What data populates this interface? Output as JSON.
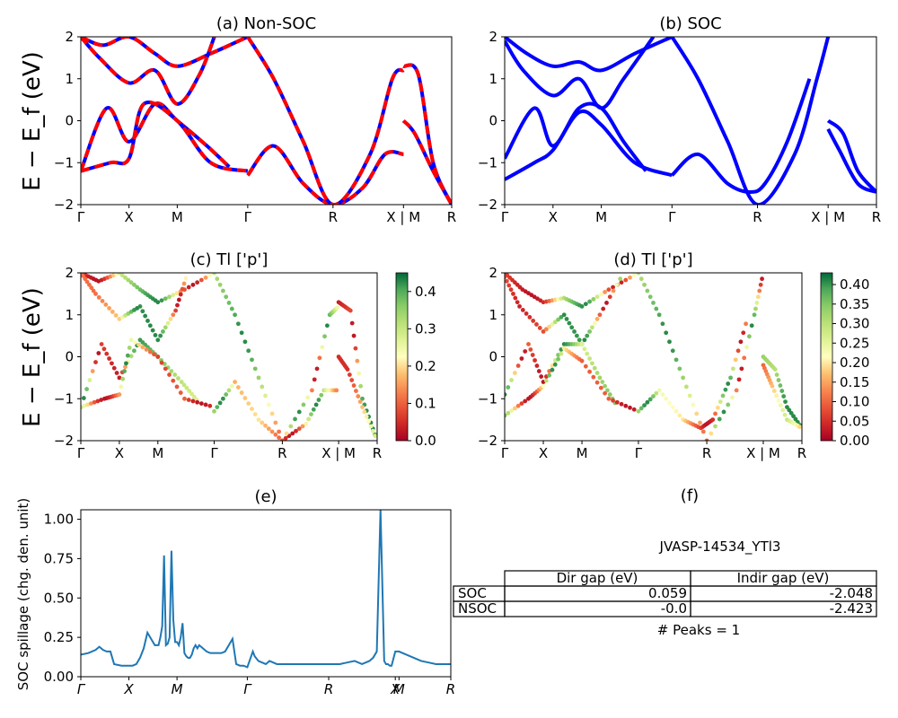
{
  "figure": {
    "ylabel": "E − E_f (eV)",
    "ylabel_e": "SOC spillage (chg. den. unit)"
  },
  "chart_data": [
    {
      "id": "a",
      "type": "line",
      "title": "(a) Non-SOC",
      "xticks": [
        "Γ",
        "X",
        "M",
        "Γ",
        "R",
        "X | M",
        "R"
      ],
      "xtick_pos": [
        0,
        0.13,
        0.26,
        0.45,
        0.68,
        0.87,
        1.0
      ],
      "ylim": [
        -2,
        2
      ],
      "yticks": [
        "2",
        "1",
        "0",
        "−1",
        "−2"
      ],
      "colors": {
        "up": "#0000ff",
        "down": "#ff0000"
      },
      "series": [
        {
          "x": [
            0,
            0.06,
            0.13,
            0.2,
            0.26,
            0.35,
            0.45
          ],
          "y": [
            2,
            1.8,
            2,
            1.6,
            1.3,
            1.6,
            2
          ]
        },
        {
          "x": [
            0,
            0.05,
            0.13,
            0.2,
            0.26,
            0.32,
            0.36
          ],
          "y": [
            2,
            1.5,
            0.9,
            1.2,
            0.4,
            1.1,
            2
          ]
        },
        {
          "x": [
            0,
            0.07,
            0.13,
            0.2,
            0.26,
            0.34,
            0.4
          ],
          "y": [
            -1.2,
            0.3,
            -0.5,
            0.4,
            0,
            -0.6,
            -1.1
          ]
        },
        {
          "x": [
            0,
            0.08,
            0.13,
            0.17,
            0.26,
            0.35,
            0.45
          ],
          "y": [
            -1.2,
            -1.0,
            -0.9,
            0.4,
            0,
            -1,
            -1.2
          ]
        },
        {
          "x": [
            0.45,
            0.52,
            0.6,
            0.68,
            0.76,
            0.82,
            0.87
          ],
          "y": [
            -1.3,
            -0.6,
            -1.5,
            -2,
            -1.6,
            -0.8,
            -0.8
          ]
        },
        {
          "x": [
            0.45,
            0.52,
            0.6,
            0.68,
            0.78,
            0.84,
            0.87
          ],
          "y": [
            2,
            1,
            -0.5,
            -2,
            -0.8,
            1.0,
            1.2
          ]
        },
        {
          "x": [
            0.87,
            0.91,
            0.95,
            1.0
          ],
          "y": [
            1.3,
            1.1,
            -1,
            -2
          ]
        },
        {
          "x": [
            0.87,
            0.9,
            0.95,
            1.0
          ],
          "y": [
            0,
            -0.3,
            -1.2,
            -2
          ]
        }
      ]
    },
    {
      "id": "b",
      "type": "line",
      "title": "(b) SOC",
      "xticks": [
        "Γ",
        "X",
        "M",
        "Γ",
        "R",
        "X | M",
        "R"
      ],
      "xtick_pos": [
        0,
        0.13,
        0.26,
        0.45,
        0.68,
        0.87,
        1.0
      ],
      "ylim": [
        -2,
        2
      ],
      "yticks": [
        "2",
        "1",
        "0",
        "−1",
        "−2"
      ],
      "colors": {
        "line": "#0000ff"
      },
      "series": [
        {
          "x": [
            0,
            0.06,
            0.13,
            0.2,
            0.26,
            0.35,
            0.45
          ],
          "y": [
            2,
            1.6,
            1.3,
            1.4,
            1.2,
            1.6,
            2
          ]
        },
        {
          "x": [
            0,
            0.05,
            0.13,
            0.2,
            0.26,
            0.32,
            0.4
          ],
          "y": [
            1.9,
            1.2,
            0.6,
            1.0,
            0.3,
            1.0,
            2
          ]
        },
        {
          "x": [
            0,
            0.08,
            0.13,
            0.2,
            0.26,
            0.32,
            0.38
          ],
          "y": [
            -0.9,
            0.3,
            -0.6,
            0.3,
            0.3,
            -0.5,
            -1.2
          ]
        },
        {
          "x": [
            0,
            0.08,
            0.13,
            0.2,
            0.26,
            0.35,
            0.45
          ],
          "y": [
            -1.4,
            -1.0,
            -0.7,
            0.2,
            -0.1,
            -1,
            -1.3
          ]
        },
        {
          "x": [
            0.45,
            0.52,
            0.6,
            0.66,
            0.7,
            0.76,
            0.82
          ],
          "y": [
            -1.3,
            -0.8,
            -1.5,
            -1.7,
            -1.5,
            -0.5,
            1
          ]
        },
        {
          "x": [
            0.45,
            0.52,
            0.6,
            0.68,
            0.78,
            0.84,
            0.87
          ],
          "y": [
            2,
            1,
            -0.5,
            -2,
            -0.8,
            1.0,
            2
          ]
        },
        {
          "x": [
            0.87,
            0.91,
            0.95,
            1.0
          ],
          "y": [
            0,
            -0.3,
            -1.2,
            -1.7
          ]
        },
        {
          "x": [
            0.87,
            0.9,
            0.95,
            1.0
          ],
          "y": [
            -0.2,
            -0.7,
            -1.5,
            -1.7
          ]
        }
      ]
    },
    {
      "id": "c",
      "type": "scatter",
      "title": "(c)  Tl ['p']",
      "xticks": [
        "Γ",
        "X",
        "M",
        "Γ",
        "R",
        "X | M",
        "R"
      ],
      "xtick_pos": [
        0,
        0.13,
        0.26,
        0.45,
        0.68,
        0.87,
        1.0
      ],
      "ylim": [
        -2,
        2
      ],
      "yticks": [
        "2",
        "1",
        "0",
        "−1",
        "−2"
      ],
      "colorbar": {
        "ticks": [
          "0.4",
          "0.3",
          "0.2",
          "0.1",
          "0.0"
        ],
        "ticks_val": [
          0.4,
          0.3,
          0.2,
          0.1,
          0.0
        ],
        "vmin": 0.0,
        "vmax": 0.45
      }
    },
    {
      "id": "d",
      "type": "scatter",
      "title": "(d) Tl ['p']",
      "xticks": [
        "Γ",
        "X",
        "M",
        "Γ",
        "R",
        "X | M",
        "R"
      ],
      "xtick_pos": [
        0,
        0.13,
        0.26,
        0.45,
        0.68,
        0.87,
        1.0
      ],
      "ylim": [
        -2,
        2
      ],
      "yticks": [
        "2",
        "1",
        "0",
        "−1",
        "−2"
      ],
      "colorbar": {
        "ticks": [
          "0.40",
          "0.35",
          "0.30",
          "0.25",
          "0.20",
          "0.15",
          "0.10",
          "0.05",
          "0.00"
        ],
        "ticks_val": [
          0.4,
          0.35,
          0.3,
          0.25,
          0.2,
          0.15,
          0.1,
          0.05,
          0.0
        ],
        "vmin": 0.0,
        "vmax": 0.43
      }
    },
    {
      "id": "e",
      "type": "line",
      "title": "(e)",
      "ylabel": "SOC spillage (chg. den. unit)",
      "xticks": [
        "Γ",
        "X",
        "M",
        "Γ",
        "R",
        "X",
        "M",
        "R"
      ],
      "xtick_pos": [
        0,
        0.13,
        0.26,
        0.45,
        0.67,
        0.85,
        0.86,
        1.0
      ],
      "ylim": [
        0,
        1.06
      ],
      "yticks": [
        "1.00",
        "0.75",
        "0.50",
        "0.25",
        "0.00"
      ],
      "yticks_val": [
        1.0,
        0.75,
        0.5,
        0.25,
        0.0
      ],
      "color": "#1f77b4",
      "x": [
        0,
        0.02,
        0.04,
        0.05,
        0.055,
        0.06,
        0.07,
        0.08,
        0.09,
        0.11,
        0.13,
        0.14,
        0.15,
        0.16,
        0.17,
        0.18,
        0.19,
        0.2,
        0.21,
        0.215,
        0.22,
        0.225,
        0.23,
        0.235,
        0.24,
        0.245,
        0.25,
        0.255,
        0.26,
        0.265,
        0.27,
        0.275,
        0.28,
        0.285,
        0.29,
        0.295,
        0.3,
        0.305,
        0.31,
        0.315,
        0.32,
        0.33,
        0.34,
        0.35,
        0.36,
        0.37,
        0.38,
        0.39,
        0.4,
        0.41,
        0.42,
        0.43,
        0.44,
        0.45,
        0.465,
        0.47,
        0.48,
        0.49,
        0.5,
        0.51,
        0.52,
        0.53,
        0.54,
        0.55,
        0.56,
        0.58,
        0.6,
        0.62,
        0.64,
        0.66,
        0.68,
        0.7,
        0.72,
        0.74,
        0.76,
        0.77,
        0.78,
        0.79,
        0.8,
        0.81,
        0.82,
        0.825,
        0.83,
        0.835,
        0.84,
        0.85,
        0.86,
        0.87,
        0.88,
        0.9,
        0.92,
        0.94,
        0.96,
        0.98,
        1.0
      ],
      "y": [
        0.14,
        0.15,
        0.17,
        0.19,
        0.18,
        0.17,
        0.16,
        0.16,
        0.08,
        0.07,
        0.07,
        0.07,
        0.08,
        0.12,
        0.18,
        0.28,
        0.24,
        0.2,
        0.2,
        0.25,
        0.32,
        0.77,
        0.2,
        0.21,
        0.25,
        0.8,
        0.36,
        0.22,
        0.22,
        0.2,
        0.25,
        0.34,
        0.15,
        0.13,
        0.12,
        0.12,
        0.14,
        0.18,
        0.2,
        0.18,
        0.2,
        0.18,
        0.16,
        0.15,
        0.15,
        0.15,
        0.15,
        0.16,
        0.2,
        0.24,
        0.08,
        0.07,
        0.07,
        0.06,
        0.16,
        0.13,
        0.1,
        0.09,
        0.08,
        0.1,
        0.09,
        0.08,
        0.08,
        0.08,
        0.08,
        0.08,
        0.08,
        0.08,
        0.08,
        0.08,
        0.08,
        0.08,
        0.09,
        0.1,
        0.08,
        0.09,
        0.1,
        0.12,
        0.16,
        1.06,
        0.1,
        0.08,
        0.08,
        0.07,
        0.07,
        0.16,
        0.16,
        0.15,
        0.14,
        0.12,
        0.1,
        0.09,
        0.08,
        0.08,
        0.08
      ]
    }
  ],
  "panel_f": {
    "title": "(f)",
    "material": "JVASP-14534_YTl3",
    "table_headers": [
      "Dir gap (eV)",
      "Indir gap (eV)"
    ],
    "rows": [
      {
        "label": "SOC",
        "dir": "0.059",
        "indir": "-2.048"
      },
      {
        "label": "NSOC",
        "dir": "-0.0",
        "indir": "-2.423"
      }
    ],
    "peaks": "# Peaks = 1"
  }
}
